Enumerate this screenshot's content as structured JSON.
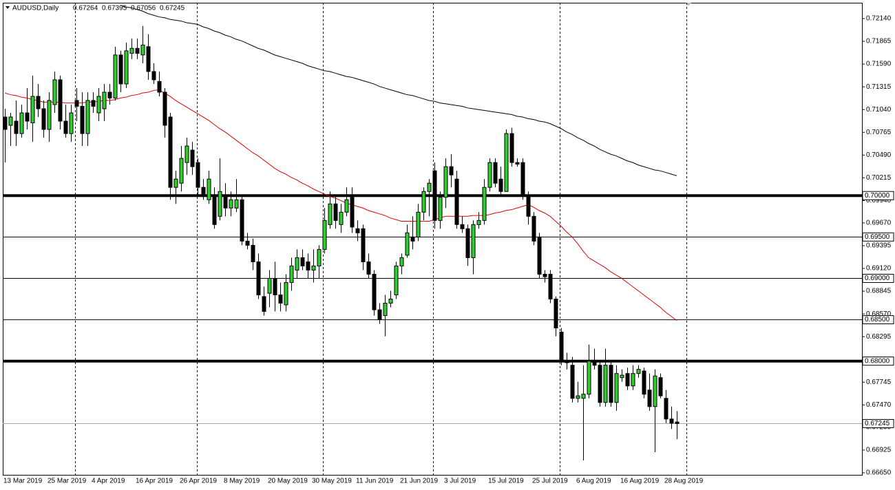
{
  "chart_data": {
    "type": "candlestick",
    "title": "AUDUSD,Daily",
    "categories": [
      "13 Mar 2019",
      null,
      null,
      null,
      null,
      null,
      null,
      null,
      "25 Mar 2019",
      null,
      null,
      null,
      null,
      null,
      null,
      null,
      "4 Apr 2019",
      null,
      null,
      null,
      null,
      null,
      null,
      null,
      "16 Apr 2019",
      null,
      null,
      null,
      null,
      null,
      null,
      null,
      "26 Apr 2019",
      null,
      null,
      null,
      null,
      null,
      null,
      null,
      "8 May 2019",
      null,
      null,
      null,
      null,
      null,
      null,
      null,
      "20 May 2019",
      null,
      null,
      null,
      null,
      null,
      null,
      null,
      "30 May 2019",
      null,
      null,
      null,
      null,
      null,
      null,
      null,
      "11 Jun 2019",
      null,
      null,
      null,
      null,
      null,
      null,
      null,
      "21 Jun 2019",
      null,
      null,
      null,
      null,
      null,
      null,
      null,
      "3 Jul 2019",
      null,
      null,
      null,
      null,
      null,
      null,
      null,
      "15 Jul 2019",
      null,
      null,
      null,
      null,
      null,
      null,
      null,
      "25 Jul 2019",
      null,
      null,
      null,
      null,
      null,
      null,
      null,
      "6 Aug 2019",
      null,
      null,
      null,
      null,
      null,
      null,
      null,
      "16 Aug 2019",
      null,
      null,
      null,
      null,
      null,
      null,
      null,
      "28 Aug 2019",
      null,
      null
    ],
    "open": [
      0.7095,
      0.7085,
      0.709,
      0.7075,
      0.71,
      0.7088,
      0.712,
      0.7105,
      0.708,
      0.711,
      0.714,
      0.709,
      0.7075,
      0.7115,
      0.7108,
      0.7075,
      0.7115,
      0.71,
      0.7105,
      0.7125,
      0.7118,
      0.717,
      0.7135,
      0.7172,
      0.7178,
      0.717,
      0.718,
      0.715,
      0.7138,
      0.7125,
      0.7095,
      0.701,
      0.7015,
      0.704,
      0.7055,
      0.704,
      0.701,
      0.6995,
      0.7,
      0.6975,
      0.7,
      0.6985,
      0.6985,
      0.6995,
      0.6945,
      0.694,
      0.692,
      0.6878,
      0.6882,
      0.69,
      0.688,
      0.6868,
      0.6895,
      0.691,
      0.6925,
      0.692,
      0.691,
      0.6915,
      0.6935,
      0.6965,
      0.699,
      0.6965,
      0.698,
      0.6998,
      0.696,
      0.696,
      0.692,
      0.6905,
      0.6862,
      0.6855,
      0.687,
      0.688,
      0.6915,
      0.6928,
      0.695,
      0.695,
      0.698,
      0.7005,
      0.703,
      0.697,
      0.6998,
      0.7035,
      0.702,
      0.6965,
      0.696,
      0.6925,
      0.6965,
      0.697,
      0.701,
      0.704,
      0.702,
      0.7005,
      0.7075,
      0.704,
      0.704,
      0.7,
      0.6975,
      0.695,
      0.6905,
      0.6905,
      0.6875,
      0.6835,
      0.68,
      0.6795,
      0.6755,
      0.6755,
      0.676,
      0.68,
      0.6795,
      0.675,
      0.6795,
      0.675,
      0.678,
      0.6785,
      0.677,
      0.6785,
      0.6788,
      0.6765,
      0.6745,
      0.678,
      0.6755,
      0.673,
      0.67264
    ],
    "high": [
      0.7105,
      0.71,
      0.7115,
      0.711,
      0.713,
      0.7145,
      0.7135,
      0.7115,
      0.7125,
      0.715,
      0.7145,
      0.711,
      0.711,
      0.713,
      0.7125,
      0.7125,
      0.7125,
      0.713,
      0.7135,
      0.7135,
      0.718,
      0.7175,
      0.7185,
      0.719,
      0.719,
      0.7205,
      0.7195,
      0.716,
      0.715,
      0.713,
      0.71,
      0.703,
      0.706,
      0.707,
      0.7065,
      0.7045,
      0.702,
      0.703,
      0.701,
      0.7045,
      0.7015,
      0.7005,
      0.702,
      0.6999,
      0.6955,
      0.6948,
      0.693,
      0.689,
      0.691,
      0.692,
      0.6895,
      0.6905,
      0.6925,
      0.6935,
      0.6935,
      0.693,
      0.6935,
      0.694,
      0.6985,
      0.7005,
      0.7,
      0.699,
      0.701,
      0.701,
      0.697,
      0.6965,
      0.693,
      0.691,
      0.687,
      0.688,
      0.6885,
      0.692,
      0.693,
      0.6965,
      0.6975,
      0.699,
      0.701,
      0.702,
      0.704,
      0.7005,
      0.7045,
      0.705,
      0.703,
      0.6975,
      0.6965,
      0.697,
      0.698,
      0.702,
      0.7045,
      0.7045,
      0.7035,
      0.708,
      0.7082,
      0.7045,
      0.7045,
      0.7005,
      0.698,
      0.6955,
      0.691,
      0.691,
      0.6878,
      0.684,
      0.681,
      0.6805,
      0.6775,
      0.6795,
      0.682,
      0.6815,
      0.68,
      0.6815,
      0.68,
      0.6795,
      0.679,
      0.6792,
      0.6795,
      0.6795,
      0.6792,
      0.6785,
      0.679,
      0.6785,
      0.6765,
      0.6745,
      0.67395
    ],
    "low": [
      0.704,
      0.706,
      0.706,
      0.707,
      0.708,
      0.7065,
      0.7095,
      0.707,
      0.7065,
      0.71,
      0.708,
      0.707,
      0.7065,
      0.709,
      0.706,
      0.706,
      0.71,
      0.709,
      0.709,
      0.711,
      0.7115,
      0.7125,
      0.713,
      0.7165,
      0.7165,
      0.716,
      0.714,
      0.7135,
      0.712,
      0.707,
      0.6995,
      0.699,
      0.7005,
      0.7025,
      0.7025,
      0.7,
      0.6995,
      0.699,
      0.696,
      0.697,
      0.6975,
      0.6975,
      0.698,
      0.694,
      0.6935,
      0.691,
      0.6875,
      0.6855,
      0.6865,
      0.686,
      0.686,
      0.686,
      0.6885,
      0.69,
      0.691,
      0.69,
      0.6895,
      0.69,
      0.693,
      0.696,
      0.696,
      0.6955,
      0.6975,
      0.6955,
      0.6945,
      0.691,
      0.69,
      0.6855,
      0.6845,
      0.683,
      0.6865,
      0.6875,
      0.6905,
      0.6925,
      0.6935,
      0.6945,
      0.697,
      0.6975,
      0.696,
      0.696,
      0.6985,
      0.701,
      0.696,
      0.6955,
      0.6915,
      0.6905,
      0.696,
      0.6965,
      0.7005,
      0.701,
      0.7,
      0.7005,
      0.7035,
      0.7035,
      0.6995,
      0.6965,
      0.694,
      0.69,
      0.6895,
      0.687,
      0.683,
      0.6795,
      0.679,
      0.675,
      0.675,
      0.668,
      0.6755,
      0.679,
      0.6745,
      0.6745,
      0.6745,
      0.674,
      0.6775,
      0.6765,
      0.6765,
      0.678,
      0.6755,
      0.674,
      0.669,
      0.6755,
      0.6725,
      0.6718,
      0.67056
    ],
    "close": [
      0.708,
      0.7095,
      0.7075,
      0.71,
      0.709,
      0.712,
      0.7105,
      0.708,
      0.7115,
      0.714,
      0.709,
      0.7075,
      0.71,
      0.7108,
      0.7075,
      0.7115,
      0.7108,
      0.712,
      0.7125,
      0.7118,
      0.717,
      0.7135,
      0.7175,
      0.7178,
      0.7172,
      0.7182,
      0.715,
      0.714,
      0.7125,
      0.7085,
      0.701,
      0.702,
      0.7045,
      0.706,
      0.7035,
      0.701,
      0.7,
      0.702,
      0.6965,
      0.7005,
      0.6985,
      0.6995,
      0.6995,
      0.6945,
      0.694,
      0.692,
      0.688,
      0.686,
      0.69,
      0.688,
      0.687,
      0.6895,
      0.6915,
      0.6925,
      0.6915,
      0.691,
      0.6915,
      0.6935,
      0.697,
      0.699,
      0.697,
      0.698,
      0.6995,
      0.6962,
      0.6955,
      0.692,
      0.6905,
      0.6862,
      0.685,
      0.687,
      0.6875,
      0.6915,
      0.6925,
      0.6955,
      0.6945,
      0.698,
      0.7005,
      0.7015,
      0.697,
      0.6998,
      0.7035,
      0.7025,
      0.6965,
      0.696,
      0.6925,
      0.6965,
      0.697,
      0.701,
      0.704,
      0.7015,
      0.7005,
      0.7075,
      0.704,
      0.7038,
      0.7,
      0.6975,
      0.6945,
      0.6905,
      0.6902,
      0.6875,
      0.684,
      0.68,
      0.6798,
      0.6755,
      0.6758,
      0.676,
      0.68,
      0.6795,
      0.675,
      0.6795,
      0.675,
      0.6785,
      0.6783,
      0.677,
      0.6785,
      0.679,
      0.676,
      0.6745,
      0.6782,
      0.6758,
      0.673,
      0.6725,
      0.67245
    ],
    "up_color": "#33cc33",
    "down_color": "#000000",
    "series": [
      {
        "color": "#e00000",
        "values": [
          0.7124,
          0.7122,
          0.7121,
          0.7119,
          0.7118,
          0.7116,
          0.7115,
          0.7113,
          0.7113,
          0.7113,
          0.7113,
          0.7112,
          0.7112,
          0.7112,
          0.7112,
          0.7113,
          0.7113,
          0.7114,
          0.7115,
          0.7115,
          0.7116,
          0.7118,
          0.7119,
          0.7121,
          0.7122,
          0.7124,
          0.7125,
          0.7127,
          0.7128,
          0.7124,
          0.712,
          0.7115,
          0.7111,
          0.7107,
          0.7103,
          0.7099,
          0.7095,
          0.7091,
          0.7086,
          0.7081,
          0.7077,
          0.7072,
          0.7067,
          0.7062,
          0.7057,
          0.7052,
          0.7048,
          0.7043,
          0.7038,
          0.7033,
          0.7029,
          0.7026,
          0.7022,
          0.7019,
          0.7015,
          0.7012,
          0.7008,
          0.7005,
          0.7002,
          0.6999,
          0.6997,
          0.6994,
          0.6991,
          0.6989,
          0.6987,
          0.6985,
          0.6982,
          0.698,
          0.6978,
          0.6976,
          0.6973,
          0.6971,
          0.6969,
          0.6969,
          0.6969,
          0.6969,
          0.6969,
          0.6969,
          0.6971,
          0.6973,
          0.6975,
          0.6975,
          0.6975,
          0.6975,
          0.6975,
          0.6976,
          0.6976,
          0.6976,
          0.6977,
          0.6979,
          0.698,
          0.6982,
          0.6983,
          0.6985,
          0.6987,
          0.6989,
          0.6986,
          0.6982,
          0.6979,
          0.6975,
          0.6969,
          0.6963,
          0.6956,
          0.695,
          0.6942,
          0.6933,
          0.6925,
          0.6921,
          0.6917,
          0.6913,
          0.6908,
          0.6904,
          0.69,
          0.6895,
          0.689,
          0.6885,
          0.688,
          0.6875,
          0.687,
          0.6865,
          0.6859,
          0.6854,
          0.6849
        ]
      },
      {
        "color": "#000000",
        "values": [
          null,
          null,
          null,
          null,
          null,
          null,
          null,
          null,
          null,
          null,
          null,
          null,
          null,
          null,
          null,
          null,
          null,
          null,
          null,
          null,
          null,
          0.723,
          0.7228,
          0.7227,
          0.7225,
          0.7223,
          0.722,
          0.7218,
          0.7216,
          0.7215,
          0.7213,
          0.7212,
          0.7211,
          0.7209,
          0.7208,
          0.7207,
          0.7204,
          0.7202,
          0.7199,
          0.7197,
          0.7194,
          0.7192,
          0.7189,
          0.7187,
          0.7184,
          0.7181,
          0.7178,
          0.7176,
          0.7173,
          0.717,
          0.7168,
          0.7166,
          0.7164,
          0.7162,
          0.716,
          0.7157,
          0.7155,
          0.7153,
          0.7151,
          0.715,
          0.7148,
          0.7146,
          0.7144,
          0.7143,
          0.7141,
          0.7139,
          0.7137,
          0.7135,
          0.7132,
          0.713,
          0.7128,
          0.7126,
          0.7124,
          0.7122,
          0.7121,
          0.7119,
          0.7117,
          0.7115,
          0.7114,
          0.7112,
          0.7111,
          0.711,
          0.7109,
          0.7108,
          0.7106,
          0.7105,
          0.7104,
          0.7103,
          0.7102,
          0.7101,
          0.71,
          0.7099,
          0.7098,
          0.7096,
          0.7095,
          0.7093,
          0.7092,
          0.709,
          0.7089,
          0.7087,
          0.7084,
          0.7081,
          0.7077,
          0.7074,
          0.707,
          0.7067,
          0.7063,
          0.706,
          0.7056,
          0.7053,
          0.705,
          0.7048,
          0.7045,
          0.7042,
          0.704,
          0.7037,
          0.7035,
          0.7033,
          0.7031,
          0.703,
          0.7028,
          0.7026,
          0.7024
        ]
      }
    ],
    "levels": [
      {
        "value": 0.7,
        "label": "0.70000",
        "width": 4
      },
      {
        "value": 0.695,
        "label": "0.69500",
        "width": 1
      },
      {
        "value": 0.69,
        "label": "0.69000",
        "width": 1
      },
      {
        "value": 0.685,
        "label": "0.68500",
        "width": 1
      },
      {
        "value": 0.68,
        "label": "0.68000",
        "width": 4
      }
    ],
    "ylim": [
      0.66625,
      0.72331
    ],
    "yticks": [
      {
        "value": 0.7214,
        "label": "0.72140"
      },
      0.71865,
      {
        "value": 0.7159,
        "label": "0.71590"
      },
      0.71315,
      {
        "value": 0.7104,
        "label": "0.71040"
      },
      0.70765,
      {
        "value": 0.7049,
        "label": "0.70490"
      },
      0.70215,
      {
        "value": 0.6994,
        "label": "0.69940"
      },
      {
        "value": 0.6967,
        "label": "0.69670"
      },
      0.69395,
      {
        "value": 0.6912,
        "label": "0.69120"
      },
      0.68845,
      {
        "value": 0.6857,
        "label": "0.68570"
      },
      0.68295,
      {
        "value": 0.6802,
        "label": "0.68020"
      },
      0.67745,
      {
        "value": 0.6747,
        "label": "0.67470"
      },
      {
        "value": 0.672,
        "label": "0.67200"
      },
      0.66925,
      {
        "value": 0.6665,
        "label": "0.66650"
      }
    ]
  }
}
